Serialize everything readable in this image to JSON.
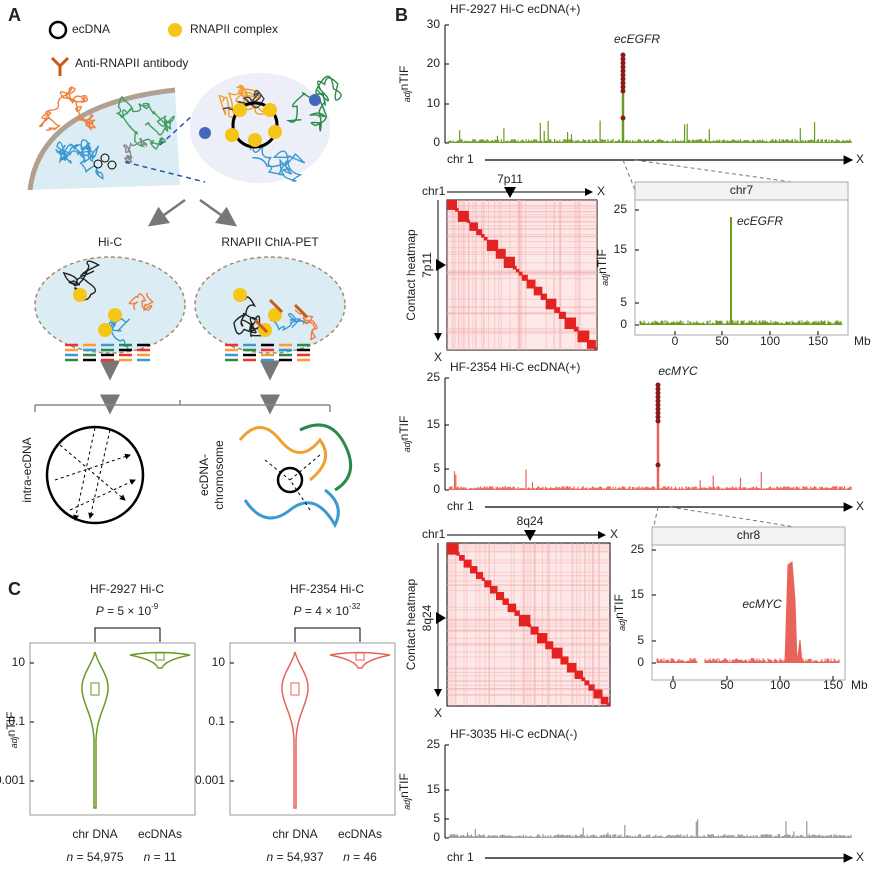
{
  "panel_a": {
    "label": "A",
    "legend": {
      "ecdna": "ecDNA",
      "rnapii": "RNAPII complex",
      "antibody": "Anti-RNAPII antibody"
    },
    "methods": [
      "Hi-C",
      "RNAPII ChIA-PET"
    ],
    "outcomes": {
      "intra": "intra-ecDNA",
      "chromosome": [
        "ecDNA-",
        "chromosome"
      ]
    }
  },
  "panel_b": {
    "label": "B",
    "y_label": {
      "sub": "adj",
      "main": "nTIF"
    },
    "tracks": [
      {
        "title": "HF-2927 Hi-C ecDNA(+)",
        "yticks": [
          "0",
          "10",
          "20",
          "30"
        ],
        "annotation": "ecEGFR",
        "x_start": "chr 1",
        "x_end": "X"
      },
      {
        "title": "HF-2354 Hi-C ecDNA(+)",
        "yticks": [
          "0",
          "5",
          "15",
          "25"
        ],
        "annotation": "ecMYC",
        "x_start": "chr 1",
        "x_end": "X"
      },
      {
        "title": "HF-3035 Hi-C ecDNA(-)",
        "yticks": [
          "0",
          "5",
          "15",
          "25"
        ],
        "x_start": "chr 1",
        "x_end": "X"
      }
    ],
    "heatmaps": [
      {
        "side_label": "Contact heatmap",
        "start": "chr1",
        "region": "7p11",
        "end": "X"
      },
      {
        "side_label": "Contact heatmap",
        "start": "chr1",
        "region": "8q24",
        "end": "X"
      }
    ],
    "zooms": [
      {
        "title": "chr7",
        "yticks": [
          "0",
          "5",
          "15",
          "25"
        ],
        "xticks": [
          "0",
          "50",
          "100",
          "150"
        ],
        "unit": "Mb",
        "annotation": "ecEGFR"
      },
      {
        "title": "chr8",
        "yticks": [
          "0",
          "5",
          "15",
          "25"
        ],
        "xticks": [
          "0",
          "50",
          "100",
          "150"
        ],
        "unit": "Mb",
        "annotation": "ecMYC"
      }
    ]
  },
  "panel_c": {
    "label": "C",
    "y_label": {
      "sub": "adj",
      "main": "nTIF"
    },
    "yticks": [
      "10",
      "0.1",
      "0.001"
    ],
    "plots": [
      {
        "title": "HF-2927 Hi-C",
        "p": {
          "symbol": "P",
          "text": " = 5 × 10",
          "exponent": "-9"
        },
        "groups": [
          "chr DNA",
          "ecDNAs"
        ],
        "n": [
          {
            "symbol": "n",
            "text": " = 54,975"
          },
          {
            "symbol": "n",
            "text": " = 11"
          }
        ]
      },
      {
        "title": "HF-2354 Hi-C",
        "p": {
          "symbol": "P",
          "text": " = 4 × 10",
          "exponent": "-32"
        },
        "groups": [
          "chr DNA",
          "ecDNAs"
        ],
        "n": [
          {
            "symbol": "n",
            "text": " = 54,937"
          },
          {
            "symbol": "n",
            "text": " = 46"
          }
        ]
      }
    ]
  }
}
